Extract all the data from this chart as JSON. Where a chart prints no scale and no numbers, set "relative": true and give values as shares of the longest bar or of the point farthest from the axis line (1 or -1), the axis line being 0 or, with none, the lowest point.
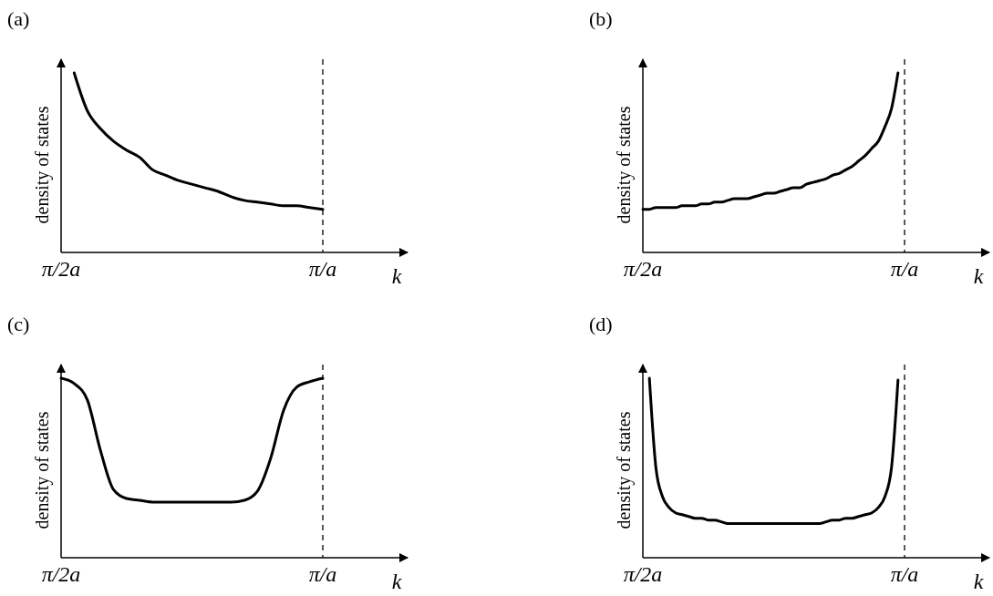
{
  "chart_data": [
    {
      "type": "line",
      "title": "(a)",
      "xlabel": "k",
      "ylabel": "density of states",
      "relative": true,
      "tick_labels": "x",
      "color": "#000000",
      "line_style": "solid",
      "categories": [
        "π/2a",
        null,
        null,
        null,
        null,
        null,
        null,
        null,
        null,
        null,
        null,
        null,
        null,
        null,
        null,
        null,
        null,
        null,
        null,
        null,
        "π/a"
      ],
      "values": [
        null,
        1,
        0.79,
        0.69,
        0.62,
        0.57,
        0.53,
        0.46,
        0.43,
        0.4,
        0.38,
        0.36,
        0.34,
        0.31,
        0.29,
        0.28,
        0.27,
        0.26,
        0.26,
        0.25,
        0.24
      ],
      "ref_lines": [
        {
          "axis": "x",
          "value": "π/a",
          "label": null,
          "line_style": "dashed"
        }
      ]
    },
    {
      "type": "line",
      "title": "(b)",
      "xlabel": "k",
      "ylabel": "density of states",
      "relative": true,
      "tick_labels": "x",
      "color": "#000000",
      "line_style": "solid",
      "categories": [
        "π/2a",
        null,
        null,
        null,
        null,
        null,
        null,
        null,
        null,
        null,
        null,
        null,
        null,
        null,
        null,
        null,
        null,
        null,
        null,
        null,
        null,
        null,
        null,
        null,
        null,
        null,
        null,
        null,
        null,
        null,
        null,
        null,
        null,
        null,
        null,
        null,
        null,
        null,
        null,
        null,
        "π/a"
      ],
      "values": [
        0.24,
        0.24,
        0.25,
        0.25,
        0.25,
        0.25,
        0.26,
        0.26,
        0.26,
        0.27,
        0.27,
        0.28,
        0.28,
        0.29,
        0.3,
        0.3,
        0.3,
        0.31,
        0.32,
        0.33,
        0.33,
        0.34,
        0.35,
        0.36,
        0.36,
        0.38,
        0.39,
        0.4,
        0.41,
        0.43,
        0.44,
        0.46,
        0.48,
        0.51,
        0.54,
        0.58,
        0.62,
        0.7,
        0.8,
        1,
        null
      ],
      "ref_lines": [
        {
          "axis": "x",
          "value": "π/a",
          "label": null,
          "line_style": "dashed"
        }
      ]
    },
    {
      "type": "line",
      "title": "(c)",
      "xlabel": "k",
      "ylabel": "density of states",
      "relative": true,
      "tick_labels": "x",
      "color": "#000000",
      "line_style": "solid",
      "categories": [
        "π/2a",
        null,
        null,
        null,
        null,
        null,
        null,
        null,
        null,
        null,
        null,
        null,
        null,
        null,
        null,
        null,
        null,
        null,
        null,
        null,
        "π/a"
      ],
      "values": [
        1,
        0.97,
        0.88,
        0.6,
        0.38,
        0.33,
        0.32,
        0.31,
        0.31,
        0.31,
        0.31,
        0.31,
        0.31,
        0.31,
        0.32,
        0.37,
        0.55,
        0.82,
        0.95,
        0.98,
        1
      ],
      "ref_lines": [
        {
          "axis": "x",
          "value": "π/a",
          "label": null,
          "line_style": "dashed"
        }
      ]
    },
    {
      "type": "line",
      "title": "(d)",
      "xlabel": "k",
      "ylabel": "density of states",
      "relative": true,
      "tick_labels": "x",
      "color": "#000000",
      "line_style": "solid",
      "categories": [
        "π/2a",
        null,
        null,
        null,
        null,
        null,
        null,
        null,
        null,
        null,
        null,
        null,
        null,
        null,
        null,
        null,
        null,
        null,
        null,
        null,
        null,
        null,
        null,
        null,
        null,
        null,
        null,
        null,
        null,
        null,
        null,
        null,
        null,
        null,
        null,
        null,
        null,
        null,
        null,
        null,
        "π/a"
      ],
      "values": [
        null,
        1,
        0.5,
        0.34,
        0.28,
        0.25,
        0.24,
        0.23,
        0.22,
        0.22,
        0.21,
        0.21,
        0.2,
        0.19,
        0.19,
        0.19,
        0.19,
        0.19,
        0.19,
        0.19,
        0.19,
        0.19,
        0.19,
        0.19,
        0.19,
        0.19,
        0.19,
        0.19,
        0.2,
        0.21,
        0.21,
        0.22,
        0.22,
        0.23,
        0.24,
        0.25,
        0.28,
        0.34,
        0.5,
        0.99,
        null
      ],
      "ref_lines": [
        {
          "axis": "x",
          "value": "π/a",
          "label": null,
          "line_style": "dashed"
        }
      ]
    }
  ]
}
